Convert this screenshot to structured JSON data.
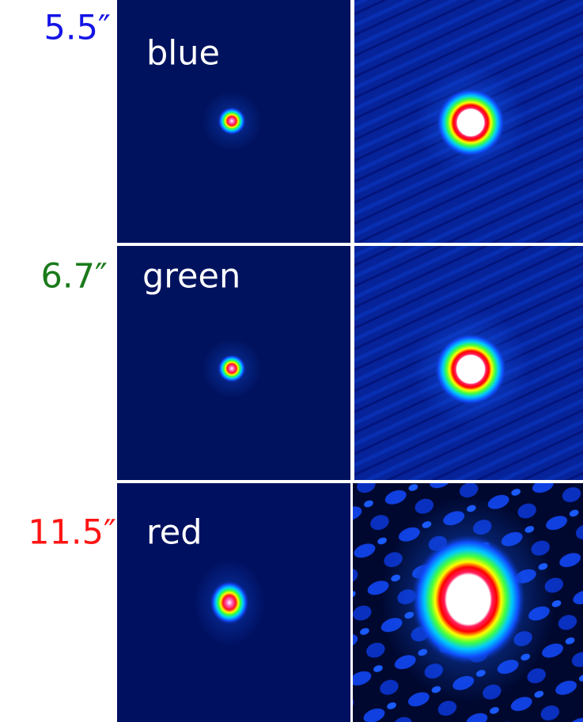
{
  "rows": [
    {
      "label": "5.5″",
      "band": "blue"
    },
    {
      "label": "6.7″",
      "band": "green"
    },
    {
      "label": "11.5″",
      "band": "red"
    }
  ]
}
